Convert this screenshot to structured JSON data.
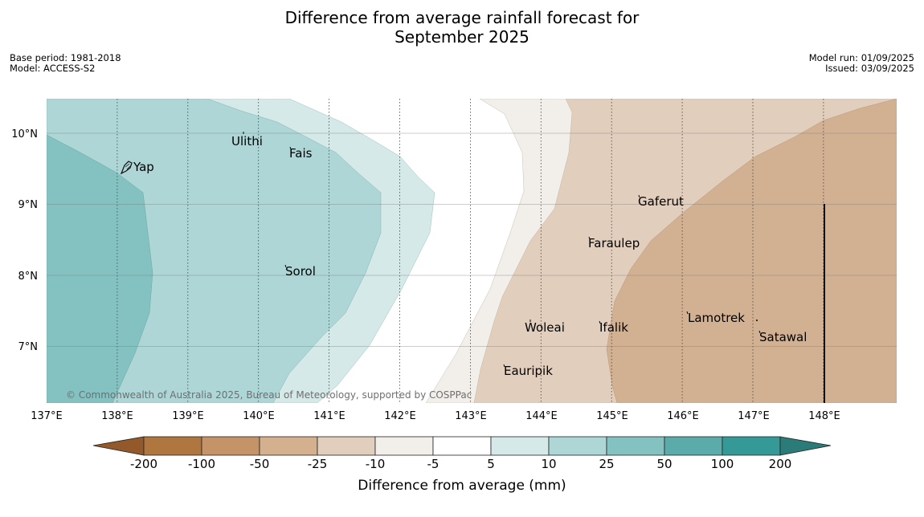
{
  "title": {
    "line1": "Difference from average rainfall forecast for",
    "line2": "September 2025"
  },
  "meta": {
    "base_period": "Base period: 1981-2018",
    "model": "Model: ACCESS-S2",
    "model_run": "Model run: 01/09/2025",
    "issued": "Issued: 03/09/2025"
  },
  "map": {
    "lon_ticks": [
      "137°E",
      "138°E",
      "139°E",
      "140°E",
      "141°E",
      "142°E",
      "143°E",
      "144°E",
      "145°E",
      "146°E",
      "147°E",
      "148°E"
    ],
    "lat_ticks": [
      "10°N",
      "9°N",
      "8°N",
      "7°N"
    ],
    "places": [
      "Yap",
      "Ulithi",
      "Fais",
      "Sorol",
      "Gaferut",
      "Faraulep",
      "Woleai",
      "Ifalik",
      "Lamotrek",
      "Satawal",
      "Eauripik"
    ],
    "copyright": "© Commonwealth of Australia 2025, Bureau of Meteorology, supported by COSPPac"
  },
  "legend": {
    "title": "Difference from average (mm)",
    "ticks": [
      "-200",
      "-100",
      "-50",
      "-25",
      "-10",
      "-5",
      "5",
      "10",
      "25",
      "50",
      "100",
      "200"
    ],
    "colors": {
      "lt_-200": "#94592a",
      "-200_-100": "#b07640",
      "-100_-50": "#c49468",
      "-50_-25": "#d4b08f",
      "-25_-10": "#e2cebd",
      "-10_-5": "#f2eeea",
      "-5_5": "#ffffff",
      "5_10": "#d5e9e8",
      "10_25": "#aed6d6",
      "25_50": "#84c2c1",
      "50_100": "#5babaa",
      "100_200": "#359a97",
      "gt_200": "#2b7c79"
    }
  }
}
